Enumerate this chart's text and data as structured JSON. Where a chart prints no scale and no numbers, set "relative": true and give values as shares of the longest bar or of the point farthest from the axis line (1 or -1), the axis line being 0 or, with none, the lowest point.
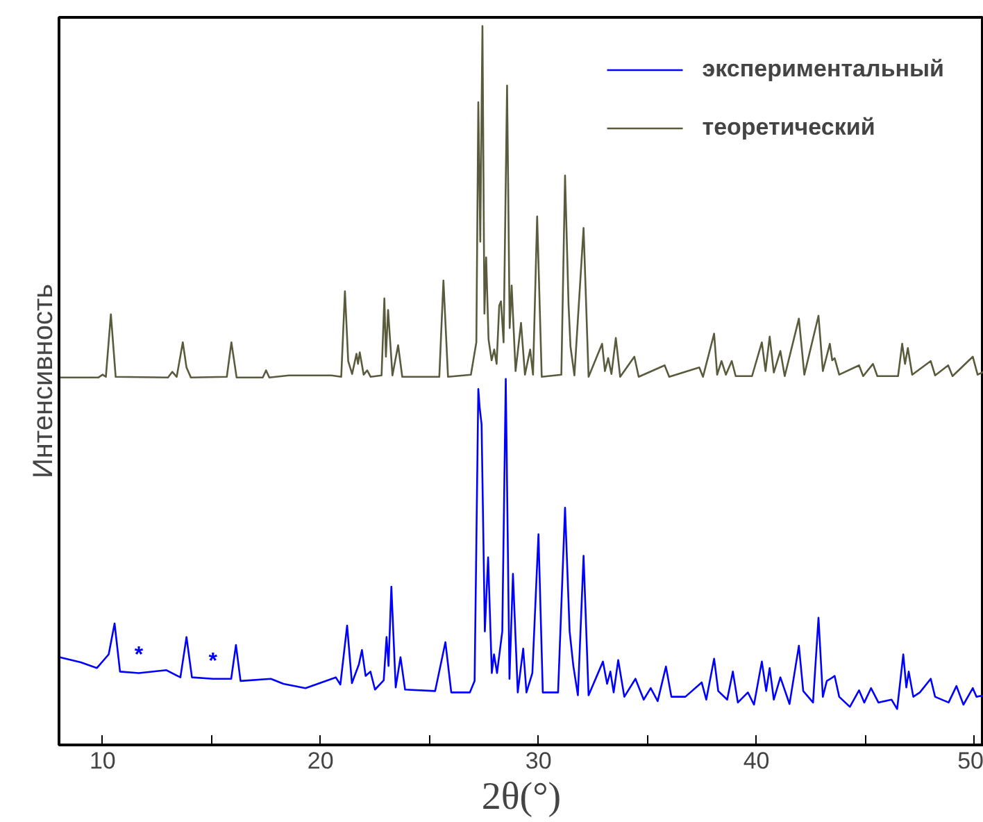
{
  "chart_data": {
    "type": "line",
    "relative": true,
    "xlabel": "2θ(°)",
    "ylabel": "Интенсивность",
    "xlim": [
      8,
      50.43
    ],
    "xticks": [
      10,
      {
        "value": 15,
        "label": null
      },
      20,
      {
        "value": 25,
        "label": null
      },
      30,
      {
        "value": 35,
        "label": null
      },
      40,
      {
        "value": 45,
        "label": null
      },
      50
    ],
    "tick_labels": "x",
    "grid": false,
    "legend": "top right",
    "marker": "none",
    "line_style": "solid",
    "annotations": [
      {
        "text": "*",
        "x": 11.66,
        "y": 0.1
      },
      {
        "text": "*",
        "x": 15.06,
        "y": 0.092
      }
    ],
    "series": [
      {
        "name": "экспериментальный",
        "color": "#0000ff",
        "x": [
          8.04,
          9.0,
          9.74,
          10.28,
          10.55,
          10.8,
          11.66,
          12.93,
          13.57,
          13.85,
          14.1,
          15.06,
          15.9,
          16.12,
          16.33,
          17.72,
          18.3,
          19.31,
          20.7,
          20.91,
          21.22,
          21.44,
          21.76,
          21.9,
          22.07,
          22.29,
          22.5,
          22.9,
          23.03,
          23.12,
          23.25,
          23.45,
          23.67,
          23.88,
          25.26,
          25.73,
          26.0,
          26.85,
          27.07,
          27.24,
          27.3,
          27.39,
          27.54,
          27.69,
          27.86,
          27.96,
          28.1,
          28.34,
          28.5,
          28.67,
          28.83,
          29.05,
          29.3,
          29.45,
          29.72,
          30.0,
          30.2,
          30.9,
          31.22,
          31.43,
          31.6,
          31.81,
          32.07,
          32.3,
          32.96,
          33.15,
          33.3,
          33.45,
          33.66,
          33.94,
          34.45,
          34.83,
          35.15,
          35.47,
          35.85,
          36.1,
          36.74,
          37.49,
          37.7,
          38.06,
          38.25,
          38.66,
          38.92,
          39.15,
          39.61,
          39.89,
          40.25,
          40.45,
          40.61,
          40.8,
          41.1,
          41.52,
          41.95,
          42.15,
          42.6,
          42.85,
          43.05,
          43.23,
          43.4,
          43.59,
          43.8,
          44.29,
          44.71,
          44.95,
          45.26,
          45.6,
          46.2,
          46.46,
          46.74,
          46.88,
          46.99,
          47.2,
          47.5,
          48.0,
          48.2,
          48.82,
          49.18,
          49.5,
          49.93,
          50.1,
          50.43
        ],
        "values": [
          0.122,
          0.115,
          0.107,
          0.126,
          0.169,
          0.102,
          0.1,
          0.104,
          0.094,
          0.15,
          0.094,
          0.092,
          0.092,
          0.139,
          0.089,
          0.092,
          0.085,
          0.079,
          0.094,
          0.084,
          0.166,
          0.086,
          0.112,
          0.132,
          0.096,
          0.102,
          0.077,
          0.09,
          0.15,
          0.11,
          0.22,
          0.08,
          0.122,
          0.077,
          0.075,
          0.143,
          0.073,
          0.073,
          0.089,
          0.495,
          0.47,
          0.446,
          0.158,
          0.261,
          0.1,
          0.126,
          0.1,
          0.158,
          0.509,
          0.092,
          0.238,
          0.073,
          0.134,
          0.073,
          0.1,
          0.293,
          0.073,
          0.073,
          0.33,
          0.158,
          0.11,
          0.069,
          0.263,
          0.069,
          0.116,
          0.085,
          0.102,
          0.073,
          0.118,
          0.067,
          0.092,
          0.063,
          0.079,
          0.061,
          0.109,
          0.067,
          0.067,
          0.087,
          0.063,
          0.12,
          0.075,
          0.063,
          0.102,
          0.059,
          0.073,
          0.056,
          0.116,
          0.075,
          0.107,
          0.063,
          0.094,
          0.057,
          0.138,
          0.075,
          0.059,
          0.177,
          0.067,
          0.089,
          0.092,
          0.096,
          0.067,
          0.053,
          0.076,
          0.059,
          0.079,
          0.059,
          0.063,
          0.05,
          0.126,
          0.08,
          0.102,
          0.067,
          0.073,
          0.092,
          0.067,
          0.059,
          0.082,
          0.056,
          0.079,
          0.067,
          0.069
        ]
      },
      {
        "name": "теоретический",
        "color": "#5a5a3c",
        "x": [
          8.0,
          9.8,
          10.0,
          10.15,
          10.38,
          10.6,
          13.0,
          13.2,
          13.4,
          13.68,
          13.85,
          14.05,
          15.7,
          15.91,
          16.15,
          17.35,
          17.5,
          17.65,
          18.55,
          19.25,
          20.5,
          20.95,
          21.12,
          21.27,
          21.45,
          21.65,
          21.72,
          21.8,
          21.98,
          22.14,
          22.3,
          22.8,
          22.93,
          23.0,
          23.1,
          23.3,
          23.56,
          23.75,
          24.2,
          24.6,
          25.45,
          25.64,
          25.85,
          26.9,
          27.15,
          27.24,
          27.33,
          27.43,
          27.52,
          27.6,
          27.71,
          27.85,
          27.97,
          28.08,
          28.2,
          28.28,
          28.4,
          28.56,
          28.68,
          28.77,
          28.95,
          29.2,
          29.38,
          29.62,
          29.75,
          29.94,
          30.15,
          31.05,
          31.22,
          31.38,
          31.47,
          31.65,
          32.07,
          32.3,
          32.92,
          33.05,
          33.2,
          33.35,
          33.55,
          33.75,
          34.4,
          34.6,
          35.79,
          36.0,
          37.38,
          37.55,
          38.06,
          38.2,
          38.4,
          38.6,
          38.87,
          39.05,
          39.8,
          40.25,
          40.42,
          40.61,
          40.8,
          41.1,
          41.3,
          41.95,
          42.2,
          42.85,
          43.05,
          43.37,
          43.48,
          43.59,
          43.8,
          44.71,
          44.9,
          45.35,
          45.55,
          46.5,
          46.69,
          46.82,
          46.95,
          47.15,
          48.0,
          48.2,
          48.8,
          49.0,
          49.93,
          50.15,
          50.43
        ],
        "values": [
          0.511,
          0.511,
          0.515,
          0.512,
          0.599,
          0.512,
          0.511,
          0.519,
          0.512,
          0.56,
          0.525,
          0.511,
          0.512,
          0.56,
          0.511,
          0.511,
          0.521,
          0.511,
          0.514,
          0.514,
          0.514,
          0.512,
          0.631,
          0.534,
          0.516,
          0.544,
          0.53,
          0.546,
          0.515,
          0.521,
          0.512,
          0.514,
          0.621,
          0.54,
          0.605,
          0.514,
          0.556,
          0.512,
          0.512,
          0.512,
          0.512,
          0.646,
          0.512,
          0.515,
          0.56,
          0.894,
          0.7,
          1.0,
          0.6,
          0.678,
          0.564,
          0.535,
          0.55,
          0.53,
          0.611,
          0.617,
          0.56,
          0.917,
          0.58,
          0.639,
          0.52,
          0.587,
          0.515,
          0.55,
          0.515,
          0.735,
          0.512,
          0.515,
          0.792,
          0.613,
          0.554,
          0.514,
          0.719,
          0.512,
          0.558,
          0.52,
          0.538,
          0.516,
          0.566,
          0.512,
          0.54,
          0.512,
          0.528,
          0.512,
          0.525,
          0.512,
          0.572,
          0.515,
          0.534,
          0.515,
          0.534,
          0.513,
          0.513,
          0.56,
          0.52,
          0.568,
          0.518,
          0.548,
          0.513,
          0.593,
          0.515,
          0.597,
          0.52,
          0.558,
          0.535,
          0.538,
          0.515,
          0.528,
          0.513,
          0.53,
          0.513,
          0.513,
          0.558,
          0.53,
          0.552,
          0.515,
          0.534,
          0.514,
          0.528,
          0.513,
          0.54,
          0.515,
          0.519
        ]
      }
    ]
  }
}
